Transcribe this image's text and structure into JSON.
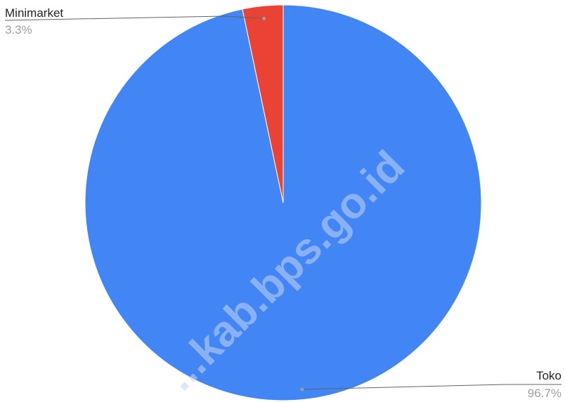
{
  "chart_data": {
    "type": "pie",
    "slices": [
      {
        "label": "Toko",
        "value": 96.7,
        "percent_label": "96.7%",
        "color": "#4285f4"
      },
      {
        "label": "Minimarket",
        "value": 3.3,
        "percent_label": "3.3%",
        "color": "#ea4335"
      }
    ],
    "legend": "none",
    "labels": "outside-with-leader-lines"
  },
  "watermark": "...kab.bps.go.id"
}
